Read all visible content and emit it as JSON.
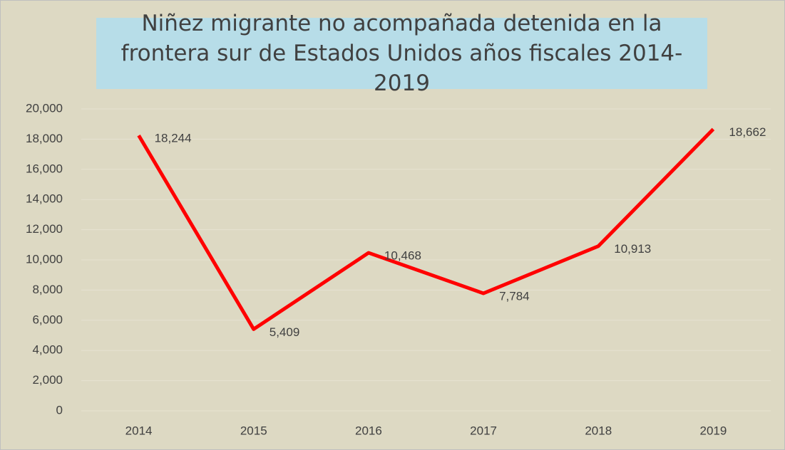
{
  "chart_data": {
    "type": "line",
    "title": "Niñez migrante no acompañada detenida en la frontera sur de Estados Unidos años fiscales 2014-2019",
    "categories": [
      "2014",
      "2015",
      "2016",
      "2017",
      "2018",
      "2019"
    ],
    "series": [
      {
        "name": "Niñez migrante",
        "color": "#ff0000",
        "values": [
          18244,
          5409,
          10468,
          7784,
          10913,
          18662
        ],
        "value_labels": [
          "18,244",
          "5,409",
          "10,468",
          "7,784",
          "10,913",
          "18,662"
        ]
      }
    ],
    "ylim": [
      0,
      20000
    ],
    "yticks": [
      0,
      {
        "value": 2000,
        "label": "2,000"
      },
      {
        "value": 4000,
        "label": "4,000"
      },
      {
        "value": 6000,
        "label": "6,000"
      },
      {
        "value": 8000,
        "label": "8,000"
      },
      {
        "value": 10000,
        "label": "10,000"
      },
      {
        "value": 12000,
        "label": "12,000"
      },
      {
        "value": 14000,
        "label": "14,000"
      },
      {
        "value": 16000,
        "label": "16,000"
      },
      {
        "value": 18000,
        "label": "18,000"
      },
      {
        "value": 20000,
        "label": "20,000"
      }
    ],
    "grid": true
  }
}
